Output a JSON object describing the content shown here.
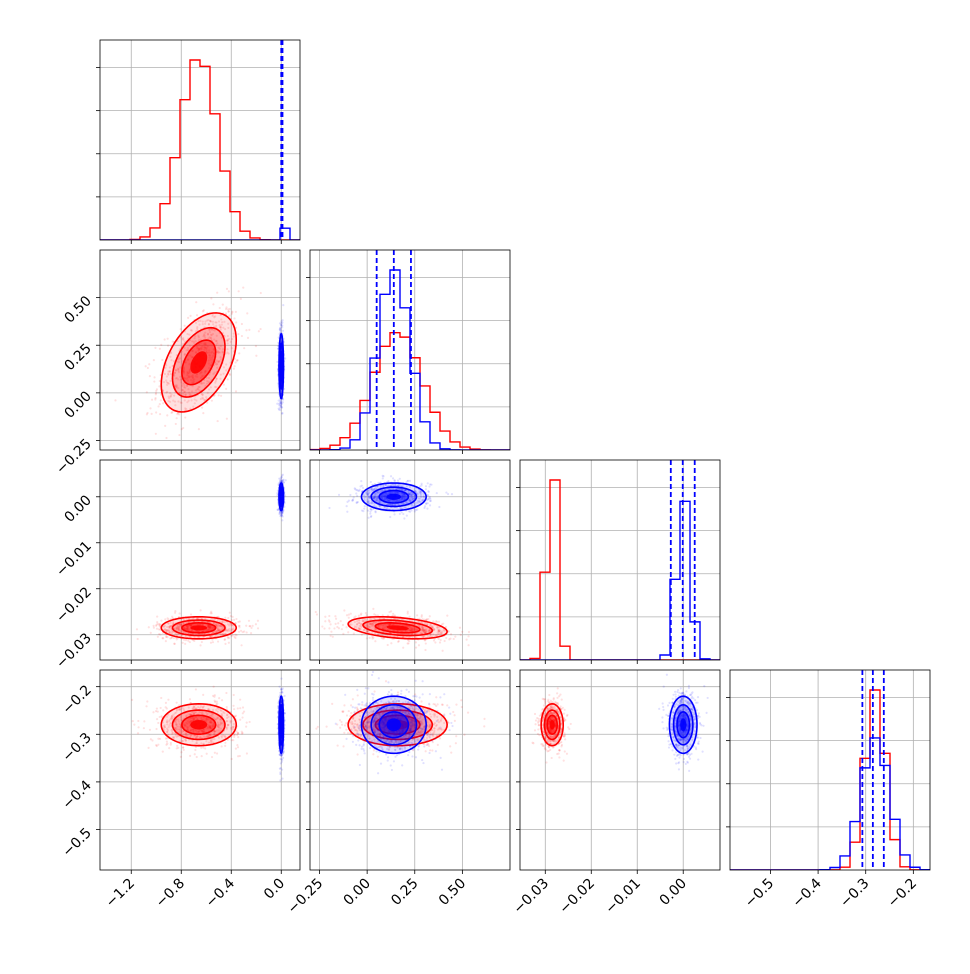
{
  "figure": {
    "type": "corner_plot",
    "n_params": 4,
    "colors": {
      "red": "#ff0000",
      "blue": "#0000ff",
      "grid": "#b0b0b0",
      "axis": "#000000"
    }
  },
  "chart_data": {
    "type": "scatter",
    "kind": "corner",
    "grid": true,
    "params": [
      {
        "ticks": [
          -1.2,
          -0.8,
          -0.4,
          0.0
        ],
        "tick_labels": [
          "−1.2",
          "−0.8",
          "−0.4",
          "0.0"
        ],
        "range": [
          -1.45,
          0.15
        ]
      },
      {
        "ticks": [
          -0.25,
          0.0,
          0.25,
          0.5
        ],
        "tick_labels": [
          "−0.25",
          "0.00",
          "0.25",
          "0.50"
        ],
        "range": [
          -0.3,
          0.75
        ]
      },
      {
        "ticks": [
          -0.03,
          -0.02,
          -0.01,
          0.0
        ],
        "tick_labels": [
          "−0.03",
          "−0.02",
          "−0.01",
          "0.00"
        ],
        "range": [
          -0.0355,
          0.008
        ]
      },
      {
        "ticks": [
          -0.5,
          -0.4,
          -0.3,
          -0.2
        ],
        "tick_labels": [
          "−0.5",
          "−0.4",
          "−0.3",
          "−0.2"
        ],
        "range": [
          -0.585,
          -0.165
        ]
      }
    ],
    "series": [
      {
        "color": "#ff0000",
        "mean": [
          -0.66,
          0.16,
          -0.0285,
          -0.28
        ],
        "sd": [
          0.15,
          0.13,
          0.0012,
          0.022
        ],
        "corr": [
          [
            0,
            1,
            0.45
          ],
          [
            1,
            2,
            -0.35
          ]
        ]
      },
      {
        "color": "#0000ff",
        "mean": [
          0.0,
          0.14,
          0.0,
          -0.28
        ],
        "sd": [
          0.009,
          0.085,
          0.0015,
          0.03
        ],
        "corr": [],
        "quantiles": [
          [
            0.0,
            0.005,
            0.01
          ],
          [
            0.05,
            0.14,
            0.23
          ],
          [
            -0.0027,
            -0.0001,
            0.0025
          ],
          [
            -0.307,
            -0.285,
            -0.262
          ]
        ]
      }
    ]
  }
}
